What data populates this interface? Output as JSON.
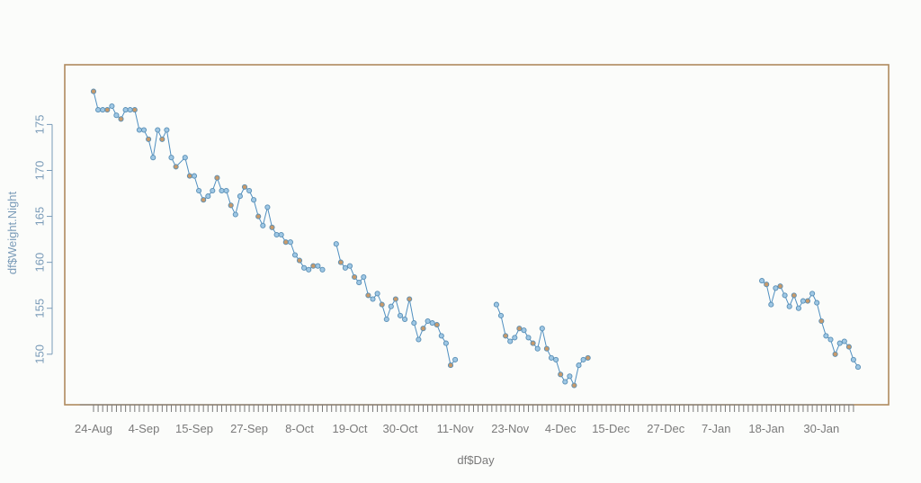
{
  "colors": {
    "frame": "#b08a5e",
    "axis_text_x": "#7a7a7a",
    "axis_text_y": "#7a9bb8",
    "line": "#4f8fc0",
    "marker_fill_a": "#c89a6a",
    "marker_fill_b": "#9ec7e4",
    "marker_edge": "#5a8fb5",
    "background": "#fbfcfa"
  },
  "chart_data": {
    "type": "line",
    "title": "",
    "xlabel": "df$Day",
    "ylabel": "df$Weight.Night",
    "x_tick_labels": [
      "24-Aug",
      "4-Sep",
      "15-Sep",
      "27-Sep",
      "8-Oct",
      "19-Oct",
      "30-Oct",
      "11-Nov",
      "23-Nov",
      "4-Dec",
      "15-Dec",
      "27-Dec",
      "7-Jan",
      "18-Jan",
      "30-Jan"
    ],
    "y_ticks": [
      150,
      155,
      160,
      165,
      170,
      175
    ],
    "ylim": [
      144.5,
      181.5
    ],
    "x_range_days": [
      -3,
      166
    ],
    "series": [
      {
        "segments": [
          [
            [
              0,
              178.6
            ],
            [
              1,
              176.6
            ],
            [
              2,
              176.6
            ],
            [
              3,
              176.6
            ],
            [
              4,
              177.0
            ],
            [
              5,
              176.0
            ],
            [
              6,
              175.6
            ],
            [
              7,
              176.6
            ],
            [
              8,
              176.6
            ],
            [
              9,
              176.6
            ],
            [
              10,
              174.4
            ],
            [
              11,
              174.4
            ],
            [
              12,
              173.4
            ],
            [
              13,
              171.4
            ],
            [
              14,
              174.4
            ],
            [
              15,
              173.4
            ],
            [
              16,
              174.4
            ],
            [
              17,
              171.4
            ],
            [
              18,
              170.4
            ],
            [
              20,
              171.4
            ],
            [
              21,
              169.4
            ],
            [
              22,
              169.4
            ],
            [
              23,
              167.8
            ],
            [
              24,
              166.8
            ],
            [
              25,
              167.2
            ],
            [
              26,
              167.8
            ],
            [
              27,
              169.2
            ],
            [
              28,
              167.8
            ],
            [
              29,
              167.8
            ],
            [
              30,
              166.2
            ],
            [
              31,
              165.2
            ],
            [
              32,
              167.2
            ],
            [
              33,
              168.2
            ],
            [
              34,
              167.8
            ],
            [
              35,
              166.8
            ],
            [
              36,
              165.0
            ],
            [
              37,
              164.0
            ],
            [
              38,
              166.0
            ],
            [
              39,
              163.8
            ],
            [
              40,
              163.0
            ],
            [
              41,
              163.0
            ],
            [
              42,
              162.2
            ],
            [
              43,
              162.2
            ],
            [
              44,
              160.8
            ],
            [
              45,
              160.2
            ],
            [
              46,
              159.4
            ],
            [
              47,
              159.2
            ],
            [
              48,
              159.6
            ],
            [
              49,
              159.6
            ],
            [
              50,
              159.2
            ]
          ],
          [
            [
              53,
              162.0
            ],
            [
              54,
              160.0
            ],
            [
              55,
              159.4
            ],
            [
              56,
              159.6
            ],
            [
              57,
              158.4
            ],
            [
              58,
              157.8
            ],
            [
              59,
              158.4
            ],
            [
              60,
              156.4
            ],
            [
              61,
              156.0
            ],
            [
              62,
              156.6
            ],
            [
              63,
              155.4
            ],
            [
              64,
              153.8
            ],
            [
              65,
              155.2
            ],
            [
              66,
              156.0
            ],
            [
              67,
              154.2
            ],
            [
              68,
              153.8
            ],
            [
              69,
              156.0
            ],
            [
              70,
              153.4
            ],
            [
              71,
              151.6
            ],
            [
              72,
              152.8
            ],
            [
              73,
              153.6
            ],
            [
              74,
              153.4
            ],
            [
              75,
              153.2
            ],
            [
              76,
              152.0
            ],
            [
              77,
              151.2
            ],
            [
              78,
              148.8
            ],
            [
              79,
              149.4
            ]
          ],
          [
            [
              88,
              155.4
            ],
            [
              89,
              154.2
            ],
            [
              90,
              152.0
            ],
            [
              91,
              151.4
            ],
            [
              92,
              151.8
            ],
            [
              93,
              152.8
            ],
            [
              94,
              152.6
            ],
            [
              95,
              151.8
            ],
            [
              96,
              151.2
            ],
            [
              97,
              150.6
            ],
            [
              98,
              152.8
            ],
            [
              99,
              150.6
            ],
            [
              100,
              149.6
            ],
            [
              101,
              149.4
            ],
            [
              102,
              147.8
            ],
            [
              103,
              147.0
            ],
            [
              104,
              147.6
            ],
            [
              105,
              146.6
            ],
            [
              106,
              148.8
            ],
            [
              107,
              149.4
            ],
            [
              108,
              149.6
            ]
          ],
          [
            [
              146,
              158.0
            ],
            [
              147,
              157.6
            ],
            [
              148,
              155.4
            ],
            [
              149,
              157.2
            ],
            [
              150,
              157.4
            ],
            [
              151,
              156.4
            ],
            [
              152,
              155.2
            ],
            [
              153,
              156.4
            ],
            [
              154,
              155.0
            ],
            [
              155,
              155.8
            ],
            [
              156,
              155.8
            ],
            [
              157,
              156.6
            ],
            [
              158,
              155.6
            ],
            [
              159,
              153.6
            ],
            [
              160,
              152.0
            ],
            [
              161,
              151.6
            ],
            [
              162,
              150.0
            ],
            [
              163,
              151.2
            ],
            [
              164,
              151.4
            ],
            [
              165,
              150.8
            ],
            [
              166,
              149.4
            ],
            [
              167,
              148.6
            ]
          ]
        ]
      }
    ],
    "grid": false,
    "legend": "none"
  }
}
